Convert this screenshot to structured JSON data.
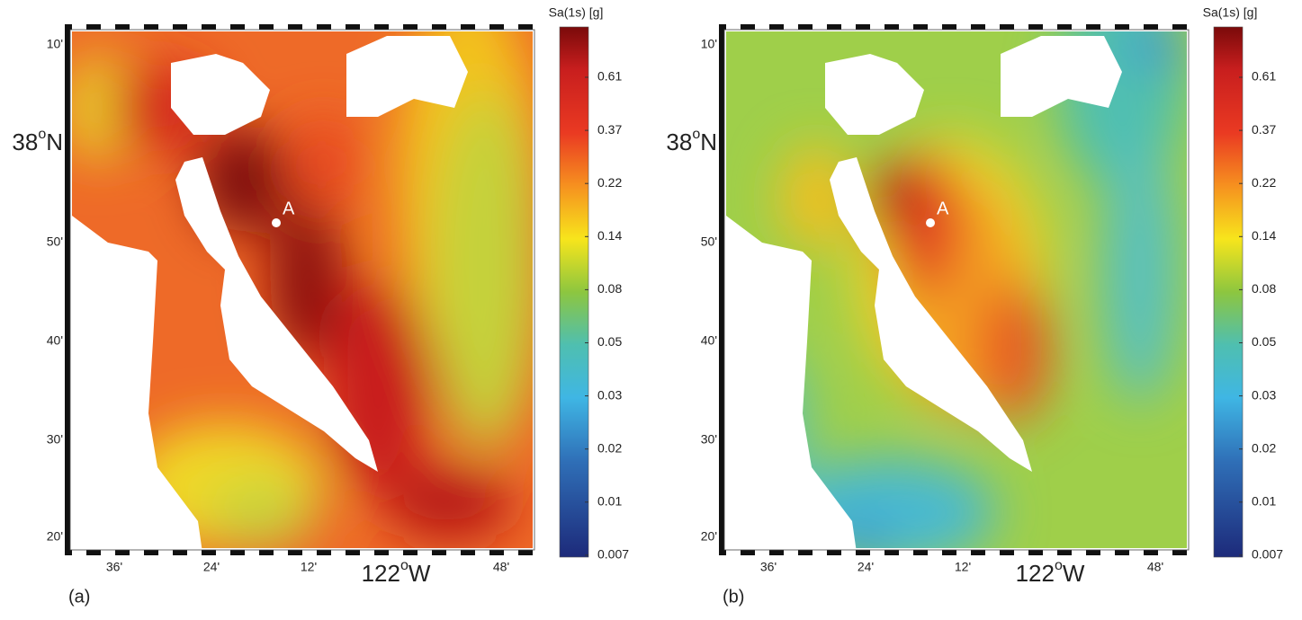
{
  "panels": [
    {
      "label": "(a)",
      "marker": "A"
    },
    {
      "label": "(b)",
      "marker": "A"
    }
  ],
  "colorbar": {
    "title": "Sa(1s) [g]",
    "ticks": [
      "0.61",
      "0.37",
      "0.22",
      "0.14",
      "0.08",
      "0.05",
      "0.03",
      "0.02",
      "0.01",
      "0.007"
    ]
  },
  "lat_labels": [
    "10'",
    {
      "number": "38",
      "degree": "o",
      "hemisphere": "N"
    },
    "50'",
    "40'",
    "30'",
    "20'"
  ],
  "lon_labels": [
    "36'",
    "24'",
    "12'",
    {
      "number": "122",
      "degree": "o",
      "hemisphere": "W"
    },
    "48'"
  ]
}
